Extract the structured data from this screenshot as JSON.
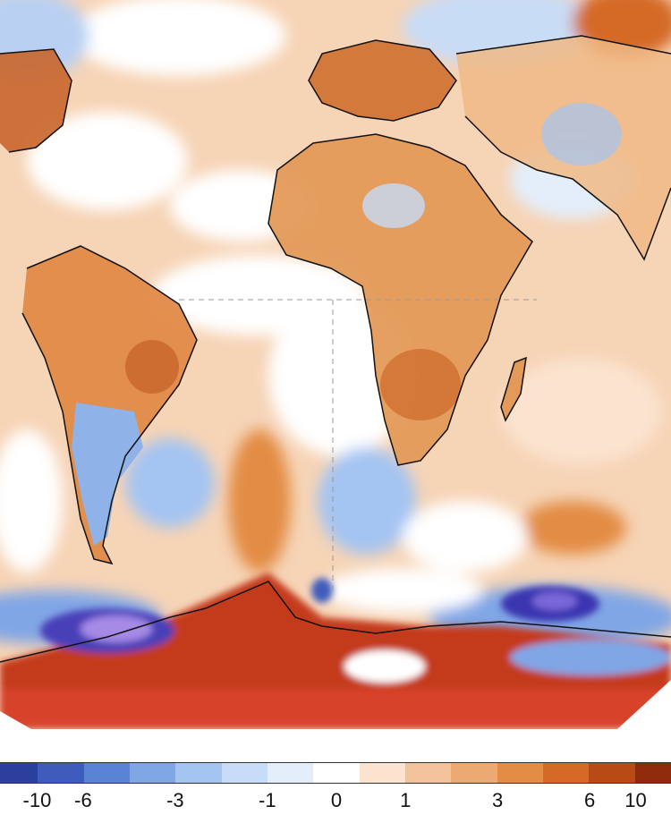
{
  "colorbar": {
    "colors": [
      "#2a3f9e",
      "#3f5cbc",
      "#5b83d4",
      "#80a6e6",
      "#a4c4f2",
      "#c6dcf8",
      "#e4eefb",
      "#ffffff",
      "#fbe3cf",
      "#f2c39a",
      "#ecaa72",
      "#e38c45",
      "#d46a25",
      "#b84a16",
      "#8f2a0d"
    ],
    "ticks": [
      {
        "label": "-10",
        "value": -10
      },
      {
        "label": "-6",
        "value": -6
      },
      {
        "label": "-3",
        "value": -3
      },
      {
        "label": "-1",
        "value": -1
      },
      {
        "label": "0",
        "value": 0
      },
      {
        "label": "1",
        "value": 1
      },
      {
        "label": "3",
        "value": 3
      },
      {
        "label": "6",
        "value": 6
      },
      {
        "label": "10",
        "value": 10
      }
    ]
  },
  "map": {
    "ocean_color": "#f6d4b6",
    "land_warm_color": "#e08a48",
    "land_cool_color": "#8fb2e8",
    "antarctic_warm_color": "#c43a1a",
    "antarctic_cool_color": "#6a5bd0",
    "coastline_color": "#111111"
  }
}
